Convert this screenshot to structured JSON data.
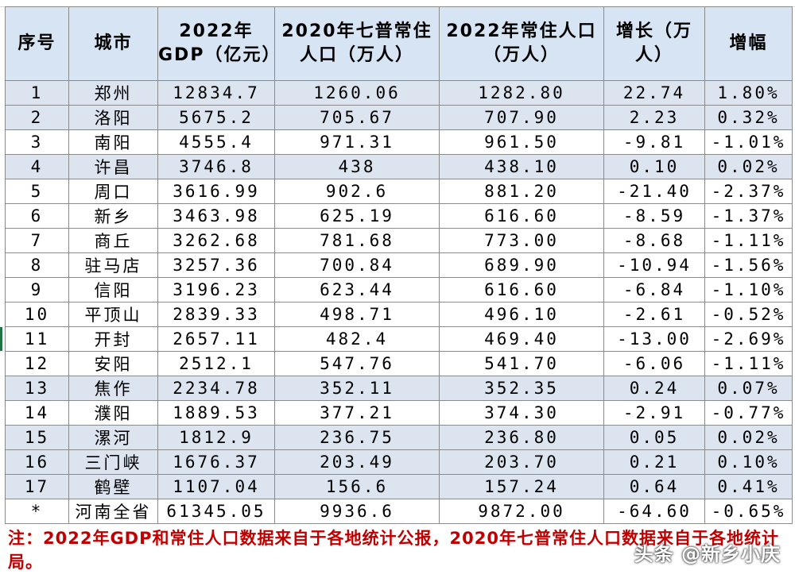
{
  "headers": {
    "index": "序号",
    "city": "城市",
    "gdp": "2022年GDP（亿元）",
    "pop2020": "2020年七普常住人口（万人）",
    "pop2022": "2022年常住人口（万人）",
    "growth": "增长（万人）",
    "rate": "增幅"
  },
  "rows": [
    {
      "no": "1",
      "city": "郑州",
      "gdp": "12834.7",
      "pop2020": "1260.06",
      "pop2022": "1282.80",
      "growth": "22.74",
      "rate": "1.80%"
    },
    {
      "no": "2",
      "city": "洛阳",
      "gdp": "5675.2",
      "pop2020": "705.67",
      "pop2022": "707.90",
      "growth": "2.23",
      "rate": "0.32%"
    },
    {
      "no": "3",
      "city": "南阳",
      "gdp": "4555.4",
      "pop2020": "971.31",
      "pop2022": "961.50",
      "growth": "-9.81",
      "rate": "-1.01%"
    },
    {
      "no": "4",
      "city": "许昌",
      "gdp": "3746.8",
      "pop2020": "438",
      "pop2022": "438.10",
      "growth": "0.10",
      "rate": "0.02%"
    },
    {
      "no": "5",
      "city": "周口",
      "gdp": "3616.99",
      "pop2020": "902.6",
      "pop2022": "881.20",
      "growth": "-21.40",
      "rate": "-2.37%"
    },
    {
      "no": "6",
      "city": "新乡",
      "gdp": "3463.98",
      "pop2020": "625.19",
      "pop2022": "616.60",
      "growth": "-8.59",
      "rate": "-1.37%"
    },
    {
      "no": "7",
      "city": "商丘",
      "gdp": "3262.68",
      "pop2020": "781.68",
      "pop2022": "773.00",
      "growth": "-8.68",
      "rate": "-1.11%"
    },
    {
      "no": "8",
      "city": "驻马店",
      "gdp": "3257.36",
      "pop2020": "700.84",
      "pop2022": "689.90",
      "growth": "-10.94",
      "rate": "-1.56%"
    },
    {
      "no": "9",
      "city": "信阳",
      "gdp": "3196.23",
      "pop2020": "623.44",
      "pop2022": "616.60",
      "growth": "-6.84",
      "rate": "-1.10%"
    },
    {
      "no": "10",
      "city": "平顶山",
      "gdp": "2839.33",
      "pop2020": "498.71",
      "pop2022": "496.10",
      "growth": "-2.61",
      "rate": "-0.52%"
    },
    {
      "no": "11",
      "city": "开封",
      "gdp": "2657.11",
      "pop2020": "482.4",
      "pop2022": "469.40",
      "growth": "-13.00",
      "rate": "-2.69%"
    },
    {
      "no": "12",
      "city": "安阳",
      "gdp": "2512.1",
      "pop2020": "547.76",
      "pop2022": "541.70",
      "growth": "-6.06",
      "rate": "-1.11%"
    },
    {
      "no": "13",
      "city": "焦作",
      "gdp": "2234.78",
      "pop2020": "352.11",
      "pop2022": "352.35",
      "growth": "0.24",
      "rate": "0.07%"
    },
    {
      "no": "14",
      "city": "濮阳",
      "gdp": "1889.53",
      "pop2020": "377.21",
      "pop2022": "374.30",
      "growth": "-2.91",
      "rate": "-0.77%"
    },
    {
      "no": "15",
      "city": "漯河",
      "gdp": "1812.9",
      "pop2020": "236.75",
      "pop2022": "236.80",
      "growth": "0.05",
      "rate": "0.02%"
    },
    {
      "no": "16",
      "city": "三门峡",
      "gdp": "1676.37",
      "pop2020": "203.49",
      "pop2022": "203.70",
      "growth": "0.21",
      "rate": "0.10%"
    },
    {
      "no": "17",
      "city": "鹤壁",
      "gdp": "1107.04",
      "pop2020": "156.6",
      "pop2022": "157.24",
      "growth": "0.64",
      "rate": "0.41%"
    },
    {
      "no": "*",
      "city": "河南全省",
      "gdp": "61345.05",
      "pop2020": "9936.6",
      "pop2022": "9872.00",
      "growth": "-64.60",
      "rate": "-0.65%"
    }
  ],
  "shaded_rows": [
    1,
    2,
    4,
    13,
    15,
    16,
    17
  ],
  "note": "注：2022年GDP和常住人口数据来自于各地统计公报，2020年七普常住人口数据来自于各地统计局。",
  "watermark": "头条 @新乡小庆",
  "colors": {
    "header_bg": "#d7e4f3",
    "shade_bg": "#dce4f0",
    "note_red": "#c00000"
  }
}
